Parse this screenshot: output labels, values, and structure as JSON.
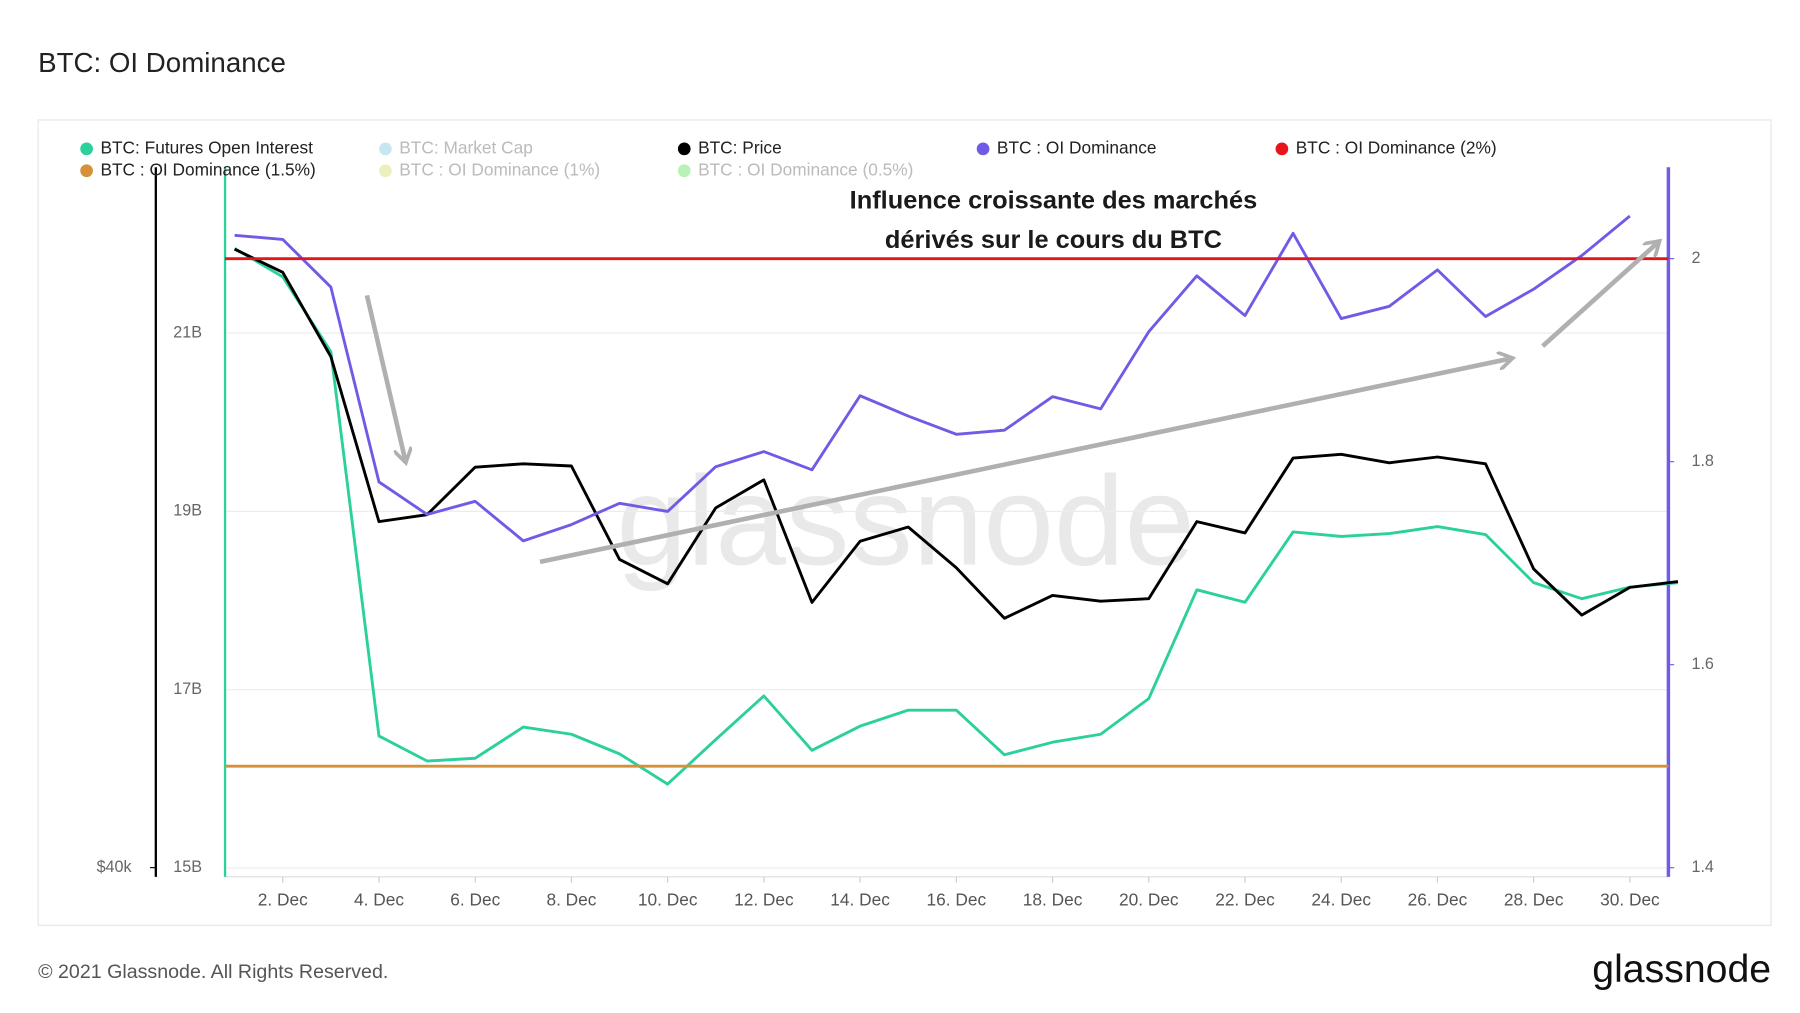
{
  "chart_data": {
    "type": "line",
    "title": "BTC: OI Dominance",
    "annotation": [
      "Influence croissante des marchés",
      "dérivés sur le cours du BTC"
    ],
    "watermark": "glassnode",
    "footer": "© 2021 Glassnode. All Rights Reserved.",
    "logo": "glassnode",
    "x": [
      1,
      2,
      3,
      4,
      5,
      6,
      7,
      8,
      9,
      10,
      11,
      12,
      13,
      14,
      15,
      16,
      17,
      18,
      19,
      20,
      21,
      22,
      23,
      24,
      25,
      26,
      27,
      28,
      29,
      30,
      31
    ],
    "xlim": [
      0.8,
      30.8
    ],
    "xticks": [
      {
        "value": 2,
        "label": "2. Dec"
      },
      {
        "value": 4,
        "label": "4. Dec"
      },
      {
        "value": 6,
        "label": "6. Dec"
      },
      {
        "value": 8,
        "label": "8. Dec"
      },
      {
        "value": 10,
        "label": "10. Dec"
      },
      {
        "value": 12,
        "label": "12. Dec"
      },
      {
        "value": 14,
        "label": "14. Dec"
      },
      {
        "value": 16,
        "label": "16. Dec"
      },
      {
        "value": 18,
        "label": "18. Dec"
      },
      {
        "value": 20,
        "label": "20. Dec"
      },
      {
        "value": 22,
        "label": "22. Dec"
      },
      {
        "value": 24,
        "label": "24. Dec"
      },
      {
        "value": 26,
        "label": "26. Dec"
      },
      {
        "value": 28,
        "label": "28. Dec"
      },
      {
        "value": 30,
        "label": "30. Dec"
      }
    ],
    "ylim": [
      14.9,
      22.86
    ],
    "yticks": [
      {
        "value": 15,
        "label": "15B"
      },
      {
        "value": 17,
        "label": "17B"
      },
      {
        "value": 19,
        "label": "19B"
      },
      {
        "value": 21,
        "label": "21B"
      }
    ],
    "y2lim": [
      1.391,
      2.09
    ],
    "y2ticks": [
      1.4,
      1.6,
      1.8,
      2
    ],
    "y3lim": [
      39746,
      59270
    ],
    "y3ticks": [
      {
        "value": 40000,
        "label": "$40k"
      }
    ],
    "grid": true,
    "series": [
      {
        "name": "BTC: Futures Open Interest",
        "color": "#2bd09c",
        "axis": "y",
        "values": [
          21.95,
          21.63,
          20.79,
          16.48,
          16.2,
          16.23,
          16.58,
          16.5,
          16.28,
          15.94,
          16.44,
          16.93,
          16.32,
          16.59,
          16.77,
          16.77,
          16.27,
          16.41,
          16.5,
          16.9,
          18.12,
          17.98,
          18.77,
          18.72,
          18.75,
          18.83,
          18.74,
          18.2,
          18.02,
          18.15,
          18.2
        ]
      },
      {
        "name": "BTC: Market Cap",
        "color": "#5eb8d6",
        "visible": false
      },
      {
        "name": "BTC: Price",
        "color": "#000000",
        "axis": "y3",
        "values": [
          57016,
          56380,
          54060,
          49520,
          49710,
          51020,
          51110,
          51050,
          48480,
          47810,
          49900,
          50670,
          47300,
          48980,
          49370,
          48250,
          46860,
          47490,
          47330,
          47400,
          49520,
          49210,
          51270,
          51370,
          51140,
          51300,
          51110,
          48220,
          46950,
          47710,
          47870
        ]
      },
      {
        "name": "BTC : OI Dominance",
        "color": "#6e5ce6",
        "axis": "y2",
        "values": [
          2.023,
          2.019,
          1.972,
          1.78,
          1.748,
          1.761,
          1.722,
          1.738,
          1.759,
          1.751,
          1.795,
          1.81,
          1.792,
          1.865,
          1.845,
          1.827,
          1.831,
          1.864,
          1.852,
          1.928,
          1.983,
          1.944,
          2.025,
          1.941,
          1.953,
          1.989,
          1.943,
          1.97,
          2.003,
          2.042,
          null
        ]
      },
      {
        "name": "BTC : OI Dominance (2%)",
        "color": "#e8141b",
        "axis": "y2",
        "hline": 2
      },
      {
        "name": "BTC : OI Dominance (1.5%)",
        "color": "#d4913a",
        "axis": "y2",
        "hline": 1.5
      },
      {
        "name": "BTC : OI Dominance (1%)",
        "color": "#c8d440",
        "visible": false
      },
      {
        "name": "BTC : OI Dominance (0.5%)",
        "color": "#31d92e",
        "visible": false
      }
    ]
  }
}
